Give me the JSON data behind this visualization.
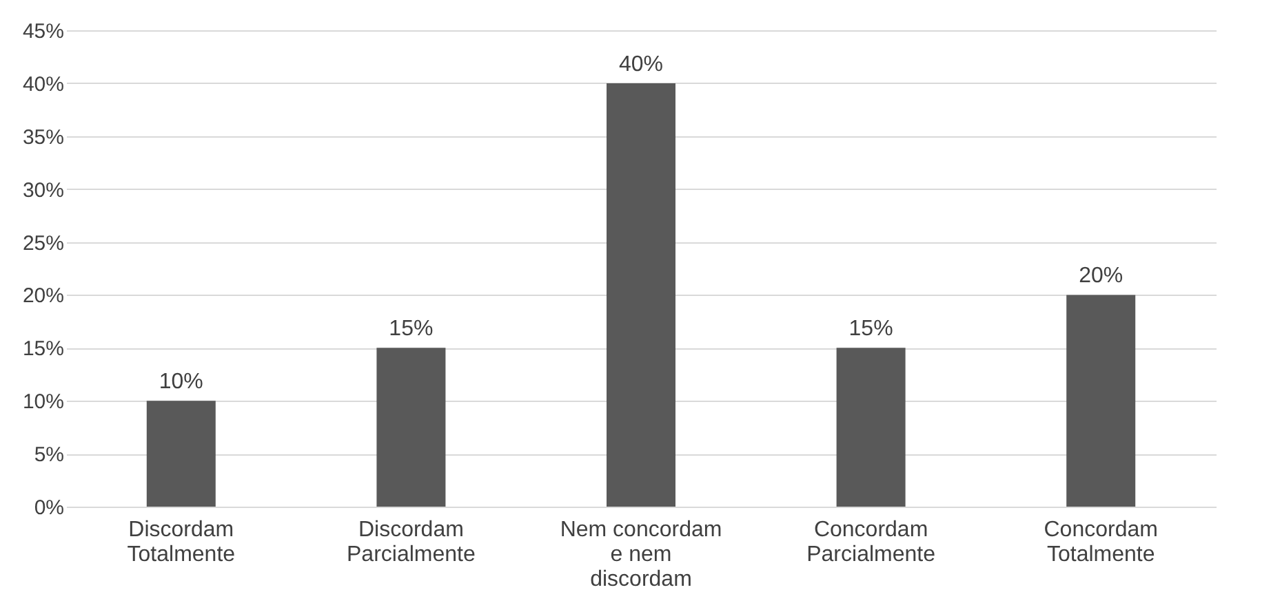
{
  "chart_data": {
    "type": "bar",
    "categories": [
      "Discordam Totalmente",
      "Discordam Parcialmente",
      "Nem concordam e nem discordam",
      "Concordam Parcialmente",
      "Concordam Totalmente"
    ],
    "values": [
      10,
      15,
      40,
      15,
      20
    ],
    "value_labels": [
      "10%",
      "15%",
      "40%",
      "15%",
      "20%"
    ],
    "color": "#595959",
    "ylim": [
      0,
      45
    ],
    "yticks": [
      {
        "value": 0,
        "label": "0%"
      },
      {
        "value": 5,
        "label": "5%"
      },
      {
        "value": 10,
        "label": "10%"
      },
      {
        "value": 15,
        "label": "15%"
      },
      {
        "value": 20,
        "label": "20%"
      },
      {
        "value": 25,
        "label": "25%"
      },
      {
        "value": 30,
        "label": "30%"
      },
      {
        "value": 35,
        "label": "35%"
      },
      {
        "value": 40,
        "label": "40%"
      },
      {
        "value": 45,
        "label": "45%"
      }
    ],
    "grid": "y"
  }
}
